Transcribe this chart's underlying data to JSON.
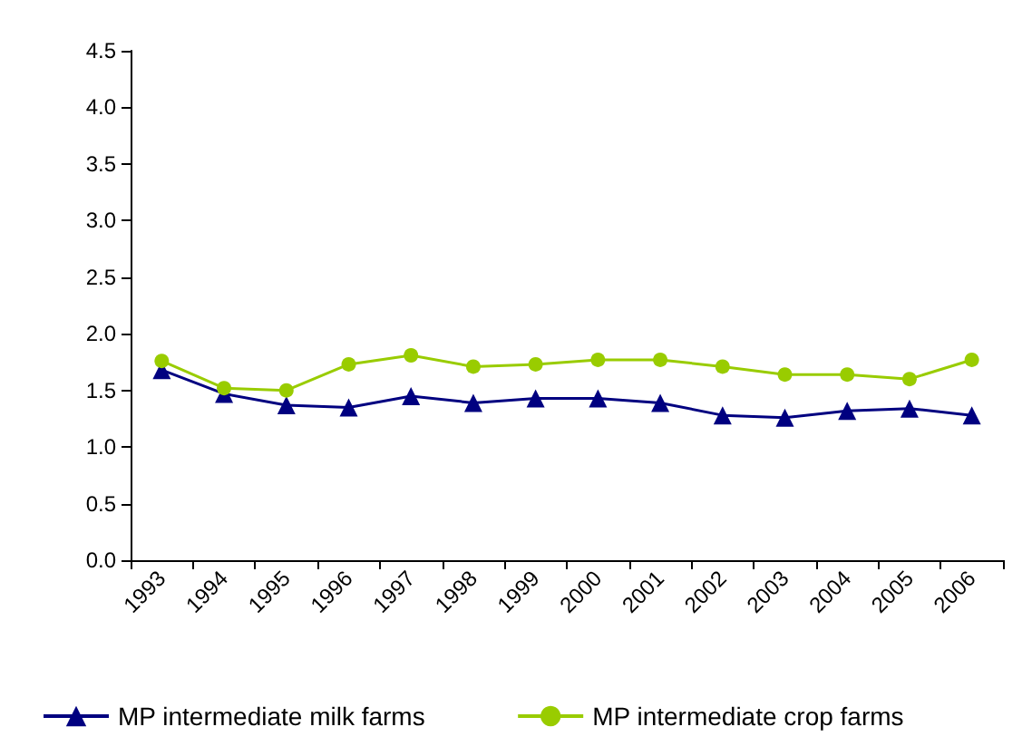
{
  "chart_data": {
    "type": "line",
    "categories": [
      "1993",
      "1994",
      "1995",
      "1996",
      "1997",
      "1998",
      "1999",
      "2000",
      "2001",
      "2002",
      "2003",
      "2004",
      "2005",
      "2006"
    ],
    "series": [
      {
        "name": "MP intermediate milk farms",
        "color": "#000080",
        "marker": "triangle",
        "values": [
          1.68,
          1.47,
          1.37,
          1.35,
          1.45,
          1.39,
          1.43,
          1.43,
          1.39,
          1.28,
          1.26,
          1.32,
          1.34,
          1.28
        ]
      },
      {
        "name": "MP intermediate crop farms",
        "color": "#99cc00",
        "marker": "circle",
        "values": [
          1.76,
          1.52,
          1.5,
          1.73,
          1.81,
          1.71,
          1.73,
          1.77,
          1.77,
          1.71,
          1.64,
          1.64,
          1.6,
          1.77
        ]
      }
    ],
    "ylim": [
      0,
      4.5
    ],
    "yticks": [
      {
        "value": 0,
        "label": "0.0"
      },
      {
        "value": 0.5,
        "label": "0.5"
      },
      {
        "value": 1,
        "label": "1.0"
      },
      {
        "value": 1.5,
        "label": "1.5"
      },
      {
        "value": 2,
        "label": "2.0"
      },
      {
        "value": 2.5,
        "label": "2.5"
      },
      {
        "value": 3,
        "label": "3.0"
      },
      {
        "value": 3.5,
        "label": "3.5"
      },
      {
        "value": 4,
        "label": "4.0"
      },
      {
        "value": 4.5,
        "label": "4.5"
      }
    ],
    "grid": false,
    "legend": "bottom"
  }
}
